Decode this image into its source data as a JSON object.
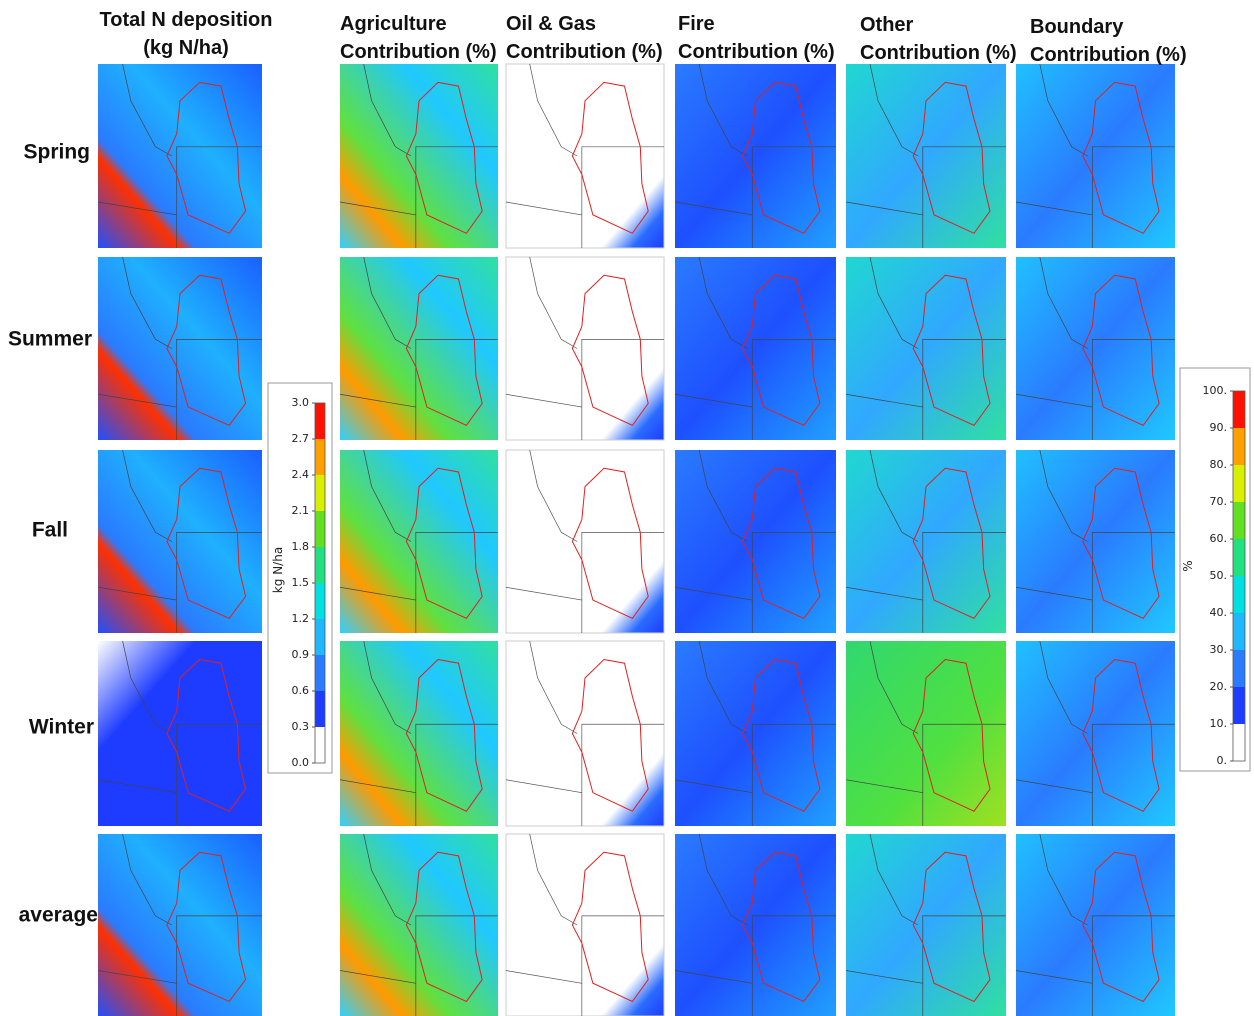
{
  "columns": [
    {
      "title": [
        "Total N deposition",
        "(kg N/ha)"
      ]
    },
    {
      "title": [
        "Agriculture",
        "Contribution (%)"
      ]
    },
    {
      "title": [
        "Oil & Gas",
        "Contribution (%)"
      ]
    },
    {
      "title": [
        "Fire",
        "Contribution (%)"
      ]
    },
    {
      "title": [
        "Other",
        "Contribution (%)"
      ]
    },
    {
      "title": [
        "Boundary",
        "Contribution (%)"
      ]
    }
  ],
  "rows": [
    "Spring",
    "Summer",
    "Fall",
    "Winter",
    "average"
  ],
  "colorbars": [
    {
      "label": "kg N/ha",
      "lim": [
        0,
        3
      ],
      "ticks": [
        {
          "value": 3.0,
          "label": "3.0"
        },
        {
          "value": 2.7,
          "label": "2.7"
        },
        {
          "value": 2.4,
          "label": "2.4"
        },
        {
          "value": 2.1,
          "label": "2.1"
        },
        {
          "value": 1.8,
          "label": "1.8"
        },
        {
          "value": 1.5,
          "label": "1.5"
        },
        {
          "value": 1.2,
          "label": "1.2"
        },
        {
          "value": 0.9,
          "label": "0.9"
        },
        {
          "value": 0.6,
          "label": "0.6"
        },
        {
          "value": 0.3,
          "label": "0.3"
        },
        {
          "value": 0.0,
          "label": "0.0"
        }
      ]
    },
    {
      "label": "%",
      "lim": [
        0,
        100
      ],
      "ticks": [
        {
          "value": 100,
          "label": "100."
        },
        {
          "value": 90,
          "label": "90."
        },
        {
          "value": 80,
          "label": "80."
        },
        {
          "value": 70,
          "label": "70."
        },
        {
          "value": 60,
          "label": "60."
        },
        {
          "value": 50,
          "label": "50."
        },
        {
          "value": 40,
          "label": "40."
        },
        {
          "value": 30,
          "label": "30."
        },
        {
          "value": 20,
          "label": "20."
        },
        {
          "value": 10,
          "label": "10."
        },
        {
          "value": 0,
          "label": "0."
        }
      ]
    }
  ]
}
